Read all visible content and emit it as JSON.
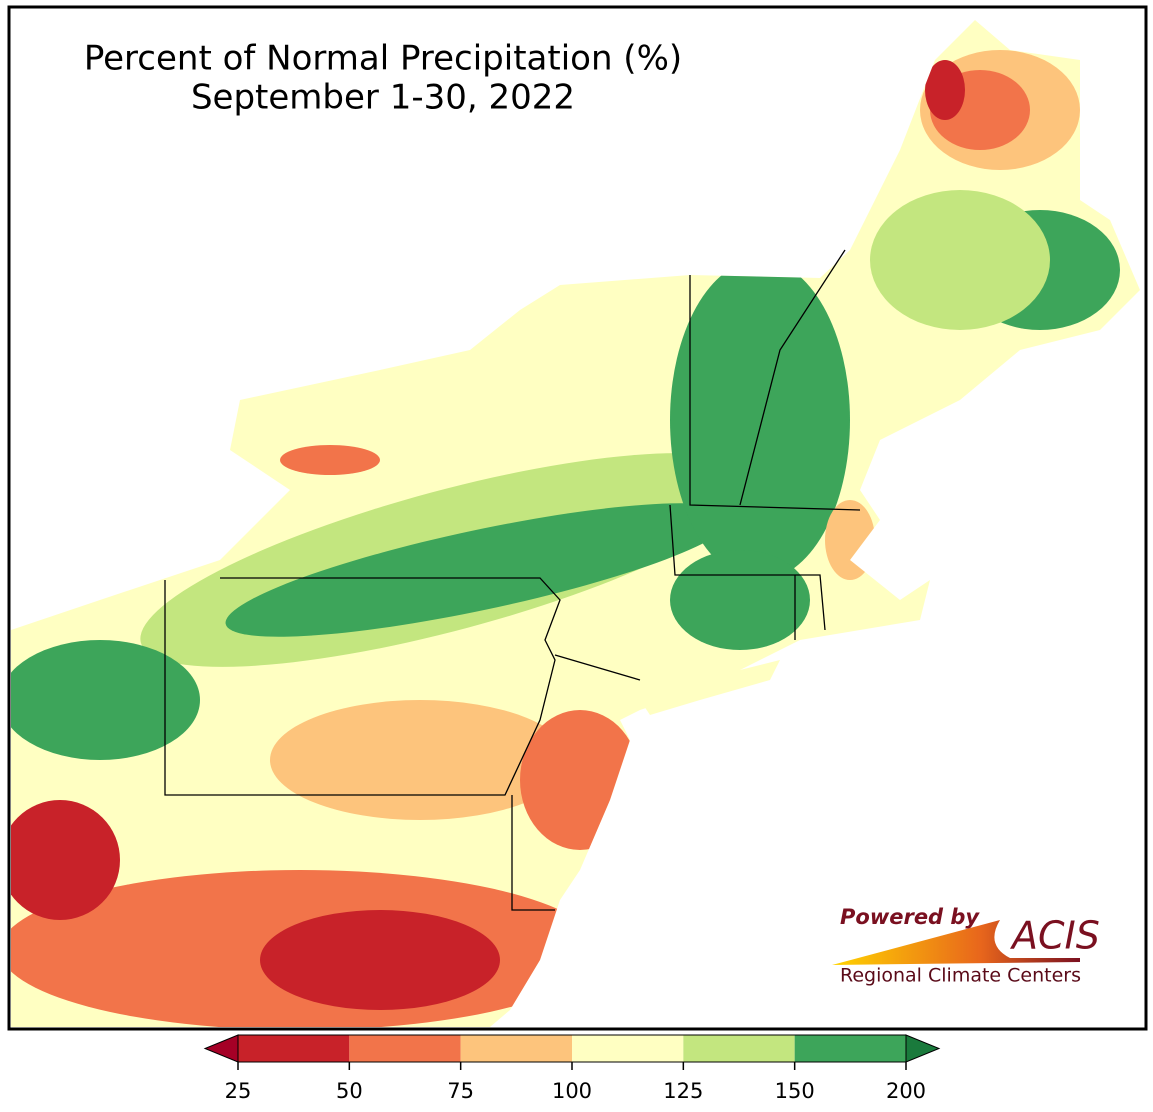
{
  "title": "Percent of Normal Precipitation (%)",
  "subtitle": "September 1-30, 2022",
  "colorbar": {
    "ticks": [
      25,
      50,
      75,
      100,
      125,
      150,
      200
    ],
    "colors": [
      "#c82229",
      "#f2744a",
      "#fdc47c",
      "#ffffc2",
      "#c3e67f",
      "#3da55a"
    ],
    "under_color": "#a50026",
    "over_color": "#1a7a3c"
  },
  "logo": {
    "powered_by": "Powered by",
    "name": "ACIS",
    "org": "Regional Climate Centers"
  }
}
